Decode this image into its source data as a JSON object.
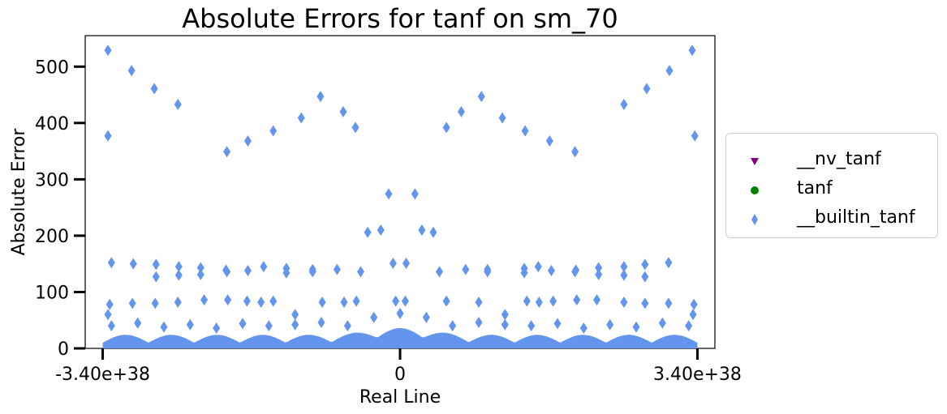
{
  "chart_data": {
    "type": "scatter",
    "title": "Absolute Errors for tanf on sm_70",
    "xlabel": "Real Line",
    "ylabel": "Absolute Error",
    "xlim": [
      -3.6e+38,
      3.6e+38
    ],
    "ylim": [
      0,
      555
    ],
    "x_ticks": [
      {
        "value": -3.4e+38,
        "label": "-3.40e+38"
      },
      {
        "value": 0,
        "label": "0"
      },
      {
        "value": 3.4e+38,
        "label": "3.40e+38"
      }
    ],
    "y_ticks": [
      0,
      100,
      200,
      300,
      400,
      500
    ],
    "grid": false,
    "legend_position": "outside-right",
    "series": [
      {
        "name": "__nv_tanf",
        "marker": "triangle-down",
        "color": "#800080",
        "points": []
      },
      {
        "name": "tanf",
        "marker": "circle",
        "color": "#008000",
        "points": []
      },
      {
        "name": "__builtin_tanf",
        "marker": "thin-diamond",
        "color": "#6495ED",
        "points": [
          [
            -3.34e+38,
            529
          ],
          [
            -3.34e+38,
            377
          ],
          [
            -3.3e+38,
            152
          ],
          [
            -3.32e+38,
            78
          ],
          [
            -3.34e+38,
            60
          ],
          [
            -3.07e+38,
            493
          ],
          [
            -3.05e+38,
            150
          ],
          [
            -3.06e+38,
            80
          ],
          [
            -2.81e+38,
            461
          ],
          [
            -2.79e+38,
            149
          ],
          [
            -2.79e+38,
            127
          ],
          [
            -2.8e+38,
            80
          ],
          [
            -2.54e+38,
            433
          ],
          [
            -2.53e+38,
            145
          ],
          [
            -2.53e+38,
            130
          ],
          [
            -2.54e+38,
            82
          ],
          [
            -2.28e+38,
            143
          ],
          [
            -2.28e+38,
            131
          ],
          [
            -2.24e+38,
            86
          ],
          [
            -1.98e+38,
            349
          ],
          [
            -1.99e+38,
            139
          ],
          [
            -1.98e+38,
            136
          ],
          [
            -1.97e+38,
            86
          ],
          [
            -1.74e+38,
            368
          ],
          [
            -1.74e+38,
            138
          ],
          [
            -1.75e+38,
            84
          ],
          [
            -1.56e+38,
            145
          ],
          [
            -1.59e+38,
            82
          ],
          [
            -1.45e+38,
            386
          ],
          [
            -1.45e+38,
            84
          ],
          [
            -1.3e+38,
            142
          ],
          [
            -1.3e+38,
            134
          ],
          [
            -1.2e+38,
            60
          ],
          [
            -1.13e+38,
            409
          ],
          [
            -1e+38,
            140
          ],
          [
            -1e+38,
            136
          ],
          [
            -9.1e+37,
            447
          ],
          [
            -8.9e+37,
            82
          ],
          [
            -7.2e+37,
            140
          ],
          [
            -6.5e+37,
            420
          ],
          [
            -6.4e+37,
            82
          ],
          [
            -5.1e+37,
            392
          ],
          [
            -5e+37,
            84
          ],
          [
            -4.5e+37,
            136
          ],
          [
            -3.7e+37,
            206
          ],
          [
            -2.2e+37,
            210
          ],
          [
            -1.3e+37,
            274
          ],
          [
            -8e+36,
            151
          ],
          [
            -5e+36,
            84
          ],
          [
            7e+36,
            151
          ],
          [
            6e+36,
            84
          ],
          [
            1.7e+37,
            274
          ],
          [
            2.5e+37,
            210
          ],
          [
            3.8e+37,
            206
          ],
          [
            4.5e+37,
            136
          ],
          [
            5.3e+37,
            392
          ],
          [
            5.3e+37,
            84
          ],
          [
            7e+37,
            420
          ],
          [
            7.5e+37,
            140
          ],
          [
            9.3e+37,
            447
          ],
          [
            9e+37,
            82
          ],
          [
            1e+38,
            140
          ],
          [
            1e+38,
            136
          ],
          [
            1.17e+38,
            409
          ],
          [
            1.2e+38,
            60
          ],
          [
            1.42e+38,
            142
          ],
          [
            1.42e+38,
            134
          ],
          [
            1.43e+38,
            386
          ],
          [
            1.45e+38,
            84
          ],
          [
            1.58e+38,
            145
          ],
          [
            1.59e+38,
            82
          ],
          [
            1.71e+38,
            368
          ],
          [
            1.73e+38,
            138
          ],
          [
            1.75e+38,
            84
          ],
          [
            2e+38,
            349
          ],
          [
            2.01e+38,
            139
          ],
          [
            2e+38,
            136
          ],
          [
            2.02e+38,
            86
          ],
          [
            2.27e+38,
            143
          ],
          [
            2.27e+38,
            131
          ],
          [
            2.25e+38,
            86
          ],
          [
            2.56e+38,
            433
          ],
          [
            2.56e+38,
            145
          ],
          [
            2.56e+38,
            130
          ],
          [
            2.56e+38,
            82
          ],
          [
            2.82e+38,
            461
          ],
          [
            2.8e+38,
            149
          ],
          [
            2.8e+38,
            127
          ],
          [
            2.8e+38,
            80
          ],
          [
            3.08e+38,
            493
          ],
          [
            3.07e+38,
            152
          ],
          [
            3.07e+38,
            80
          ],
          [
            3.34e+38,
            529
          ],
          [
            3.37e+38,
            377
          ],
          [
            3.36e+38,
            78
          ],
          [
            3.35e+38,
            60
          ],
          [
            -3.3e+38,
            40
          ],
          [
            -3e+38,
            45
          ],
          [
            -2.7e+38,
            38
          ],
          [
            -2.4e+38,
            42
          ],
          [
            -2.1e+38,
            36
          ],
          [
            -1.8e+38,
            44
          ],
          [
            -1.5e+38,
            40
          ],
          [
            -1.2e+38,
            42
          ],
          [
            -9e+37,
            46
          ],
          [
            -6e+37,
            40
          ],
          [
            -3e+37,
            55
          ],
          [
            0.0,
            62
          ],
          [
            3e+37,
            55
          ],
          [
            6e+37,
            40
          ],
          [
            9e+37,
            46
          ],
          [
            1.2e+38,
            42
          ],
          [
            1.5e+38,
            40
          ],
          [
            1.8e+38,
            44
          ],
          [
            2.1e+38,
            36
          ],
          [
            2.4e+38,
            42
          ],
          [
            2.7e+38,
            38
          ],
          [
            3e+38,
            45
          ],
          [
            3.3e+38,
            40
          ]
        ]
      }
    ]
  }
}
